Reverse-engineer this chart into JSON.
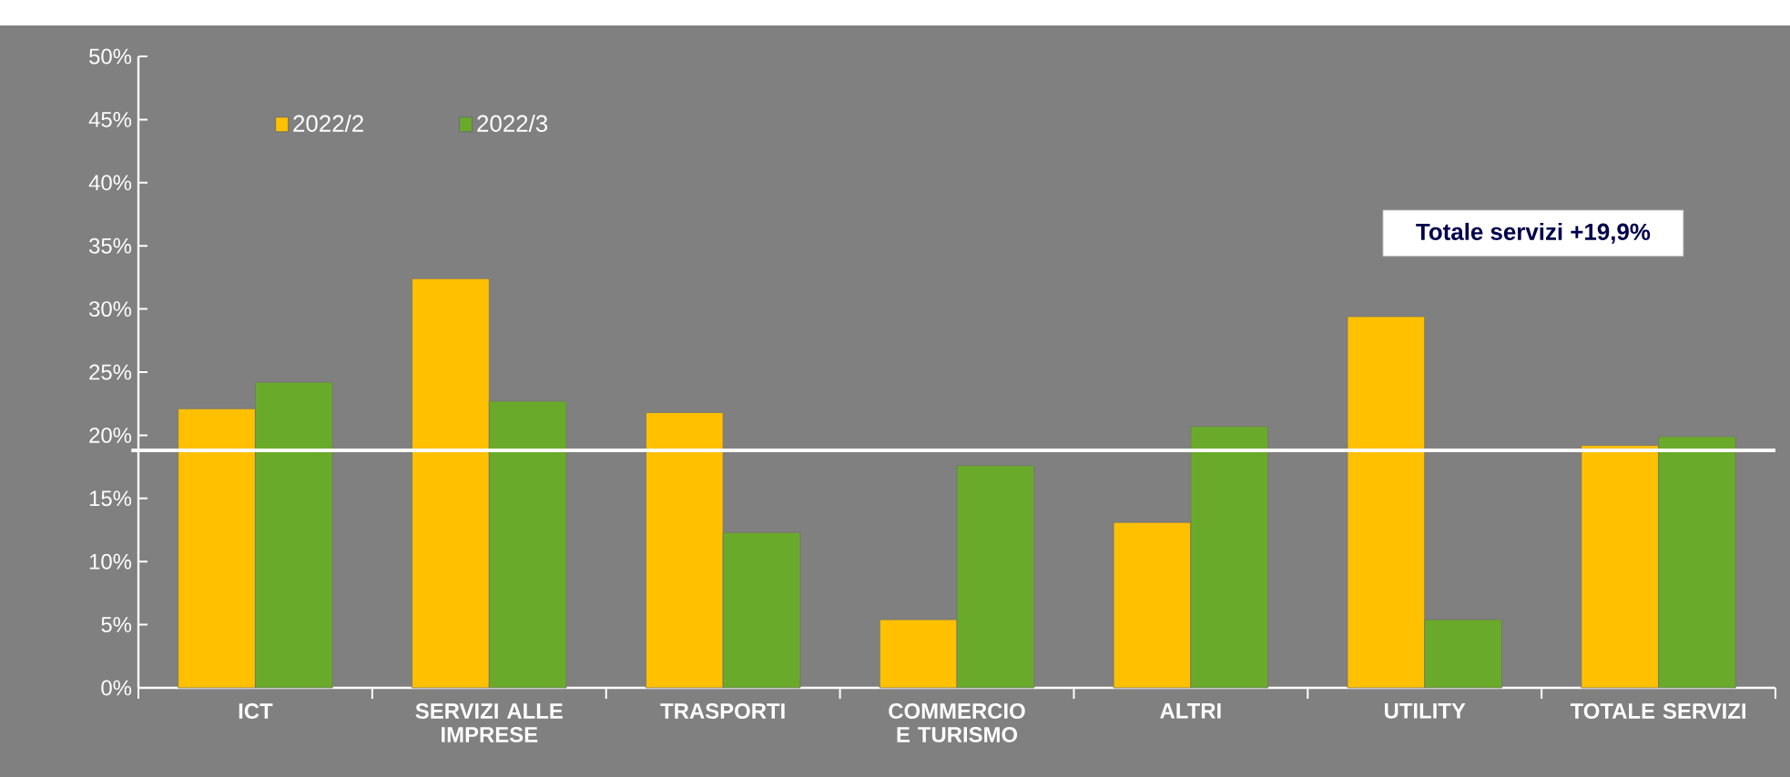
{
  "chart_data": {
    "type": "bar",
    "categories": [
      "ICT",
      "SERVIZI ALLE IMPRESE",
      "TRASPORTI",
      "COMMERCIO E TURISMO",
      "ALTRI",
      "UTILITY",
      "TOTALE SERVIZI"
    ],
    "series": [
      {
        "name": "2022/2",
        "color": "#ffc000",
        "values": [
          22.1,
          32.4,
          21.8,
          5.4,
          13.1,
          29.4,
          19.2
        ]
      },
      {
        "name": "2022/3",
        "color": "#6aaa2a",
        "values": [
          24.2,
          22.7,
          12.3,
          17.6,
          20.7,
          5.4,
          19.9
        ]
      }
    ],
    "ylim": [
      0,
      50
    ],
    "yticks": [
      {
        "value": 0,
        "label": "0%"
      },
      {
        "value": 5,
        "label": "5%"
      },
      {
        "value": 10,
        "label": "10%"
      },
      {
        "value": 15,
        "label": "15%"
      },
      {
        "value": 20,
        "label": "20%"
      },
      {
        "value": 25,
        "label": "25%"
      },
      {
        "value": 30,
        "label": "30%"
      },
      {
        "value": 35,
        "label": "35%"
      },
      {
        "value": 40,
        "label": "40%"
      },
      {
        "value": 45,
        "label": "45%"
      },
      {
        "value": 50,
        "label": "50%"
      }
    ],
    "ref_lines": [
      {
        "axis": "y",
        "value": 18.8,
        "color": "#ffffff"
      }
    ],
    "annotations": [
      "Totale servizi +19,9%"
    ],
    "legend": "top left"
  }
}
